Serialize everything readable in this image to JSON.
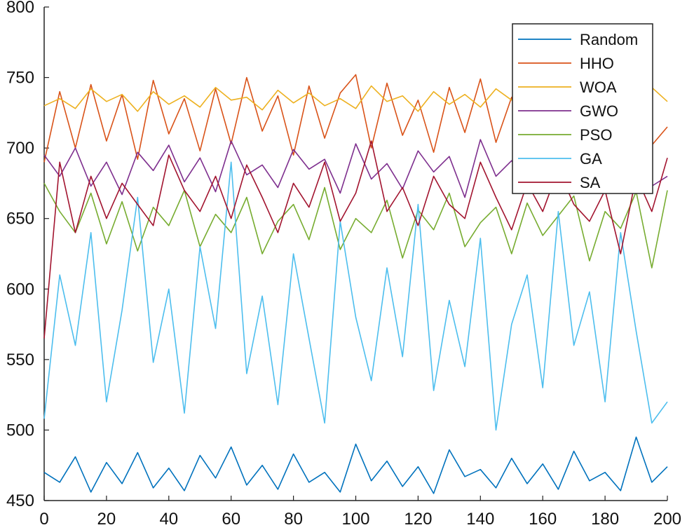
{
  "chart_data": {
    "type": "line",
    "title": "",
    "xlabel": "",
    "ylabel": "",
    "xlim": [
      0,
      200
    ],
    "ylim": [
      450,
      800
    ],
    "xticks": [
      0,
      20,
      40,
      60,
      80,
      100,
      120,
      140,
      160,
      180,
      200
    ],
    "yticks": [
      450,
      500,
      550,
      600,
      650,
      700,
      750,
      800
    ],
    "xtick_labels": [
      "0",
      "20",
      "40",
      "60",
      "80",
      "100",
      "120",
      "140",
      "160",
      "180",
      "200"
    ],
    "ytick_labels": [
      "450",
      "500",
      "550",
      "600",
      "650",
      "700",
      "750",
      "800"
    ],
    "grid": false,
    "legend_position": "top-right",
    "x": [
      0,
      5,
      10,
      15,
      20,
      25,
      30,
      35,
      40,
      45,
      50,
      55,
      60,
      65,
      70,
      75,
      80,
      85,
      90,
      95,
      100,
      105,
      110,
      115,
      120,
      125,
      130,
      135,
      140,
      145,
      150,
      155,
      160,
      165,
      170,
      175,
      180,
      185,
      190,
      195,
      200
    ],
    "series": [
      {
        "name": "Random",
        "color": "#0072BD",
        "values": [
          470,
          463,
          481,
          456,
          477,
          462,
          484,
          459,
          473,
          457,
          482,
          466,
          488,
          461,
          475,
          458,
          483,
          463,
          470,
          456,
          490,
          464,
          478,
          460,
          474,
          455,
          486,
          467,
          472,
          459,
          480,
          462,
          476,
          458,
          485,
          464,
          470,
          457,
          495,
          463,
          474
        ]
      },
      {
        "name": "HHO",
        "color": "#D95319",
        "values": [
          690,
          740,
          700,
          745,
          705,
          738,
          692,
          748,
          710,
          735,
          698,
          742,
          703,
          750,
          712,
          737,
          695,
          744,
          707,
          739,
          752,
          700,
          746,
          709,
          734,
          697,
          743,
          711,
          749,
          704,
          736,
          693,
          747,
          708,
          741,
          699,
          745,
          713,
          733,
          702,
          715
        ]
      },
      {
        "name": "WOA",
        "color": "#EDB120",
        "values": [
          730,
          735,
          728,
          742,
          733,
          738,
          726,
          740,
          731,
          737,
          729,
          743,
          734,
          736,
          727,
          741,
          732,
          739,
          730,
          735,
          728,
          744,
          733,
          737,
          726,
          740,
          731,
          738,
          729,
          742,
          734,
          736,
          727,
          741,
          732,
          739,
          730,
          737,
          728,
          743,
          733
        ]
      },
      {
        "name": "GWO",
        "color": "#7E2F8E",
        "values": [
          695,
          680,
          700,
          673,
          690,
          667,
          697,
          684,
          702,
          676,
          693,
          669,
          705,
          681,
          688,
          672,
          699,
          685,
          692,
          668,
          703,
          678,
          689,
          671,
          698,
          683,
          694,
          665,
          706,
          680,
          691,
          674,
          700,
          686,
          695,
          670,
          704,
          679,
          687,
          673,
          680
        ]
      },
      {
        "name": "PSO",
        "color": "#77AC30",
        "values": [
          675,
          655,
          640,
          668,
          632,
          662,
          627,
          658,
          645,
          670,
          630,
          653,
          640,
          665,
          625,
          648,
          660,
          635,
          672,
          628,
          650,
          640,
          663,
          622,
          656,
          642,
          668,
          630,
          647,
          658,
          625,
          661,
          638,
          652,
          666,
          620,
          655,
          643,
          669,
          615,
          670
        ]
      },
      {
        "name": "GA",
        "color": "#4DBEEE",
        "values": [
          508,
          610,
          560,
          640,
          520,
          585,
          665,
          548,
          600,
          512,
          630,
          572,
          690,
          540,
          595,
          518,
          625,
          565,
          505,
          648,
          580,
          535,
          615,
          552,
          660,
          528,
          592,
          545,
          636,
          500,
          575,
          610,
          530,
          655,
          560,
          598,
          520,
          640,
          570,
          505,
          520
        ]
      },
      {
        "name": "SA",
        "color": "#A2142F",
        "values": [
          565,
          690,
          640,
          680,
          650,
          675,
          660,
          645,
          695,
          670,
          655,
          680,
          650,
          688,
          665,
          640,
          675,
          658,
          690,
          648,
          668,
          705,
          655,
          672,
          645,
          680,
          660,
          650,
          690,
          665,
          642,
          675,
          655,
          685,
          660,
          648,
          670,
          625,
          680,
          655,
          693
        ]
      }
    ]
  }
}
